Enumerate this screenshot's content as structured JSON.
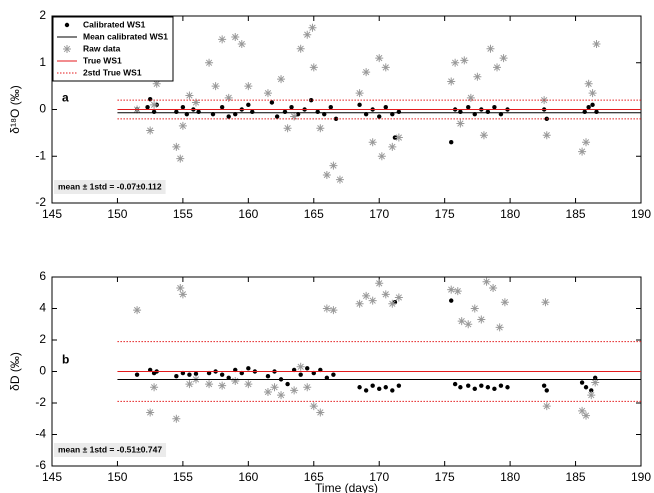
{
  "chart_data": [
    {
      "type": "scatter",
      "ylabel": "δ¹⁸O (‰)",
      "panel_label": "a",
      "annotation": "mean ± 1std = -0.07±0.112",
      "legend": "upper left",
      "xlim": [
        145,
        190
      ],
      "xticks": [
        145,
        150,
        155,
        160,
        165,
        170,
        175,
        180,
        185,
        190
      ],
      "ylim": [
        -2,
        2
      ],
      "yticks": [
        -2,
        -1,
        0,
        1,
        2
      ],
      "series": [
        {
          "name": "Calibrated WS1",
          "color": "#000000",
          "marker": "dot",
          "x": [
            151.5,
            152.3,
            152.5,
            152.8,
            153.0,
            154.5,
            155.0,
            155.3,
            155.8,
            156.2,
            157.3,
            158.0,
            158.5,
            159.0,
            159.5,
            160.0,
            160.3,
            161.8,
            162.2,
            162.8,
            163.3,
            163.8,
            164.3,
            164.8,
            165.3,
            165.8,
            166.3,
            166.7,
            168.5,
            169.0,
            169.5,
            170.0,
            170.5,
            171.0,
            171.2,
            171.5,
            175.5,
            175.8,
            176.2,
            176.8,
            177.3,
            177.8,
            178.3,
            178.8,
            179.3,
            179.8,
            182.6,
            182.8,
            185.7,
            186.0,
            186.3,
            186.6
          ],
          "values": [
            0.0,
            0.05,
            0.22,
            -0.05,
            0.1,
            -0.05,
            0.05,
            -0.1,
            0.0,
            -0.05,
            -0.1,
            0.05,
            -0.15,
            -0.1,
            0.0,
            0.1,
            -0.05,
            0.15,
            -0.15,
            -0.05,
            0.05,
            -0.1,
            0.0,
            0.2,
            -0.05,
            -0.1,
            0.05,
            -0.2,
            0.1,
            -0.1,
            0.0,
            -0.15,
            0.05,
            -0.1,
            -0.6,
            -0.05,
            -0.7,
            0.0,
            -0.05,
            0.05,
            -0.1,
            0.0,
            -0.05,
            0.05,
            -0.1,
            0.0,
            0.0,
            -0.2,
            -0.05,
            0.05,
            0.1,
            -0.05
          ]
        },
        {
          "name": "Mean calibrated WS1",
          "color": "#000000",
          "linestyle": "solid",
          "x": [
            150,
            190
          ],
          "values": [
            -0.07,
            -0.07
          ]
        },
        {
          "name": "Raw data",
          "color": "#999999",
          "marker": "star",
          "x": [
            151.5,
            152.5,
            152.8,
            153.0,
            154.5,
            154.8,
            155.0,
            155.5,
            156.0,
            157.0,
            157.5,
            158.0,
            158.5,
            159.0,
            159.5,
            160.0,
            161.5,
            162.5,
            163.0,
            163.5,
            164.0,
            164.5,
            164.9,
            165.0,
            165.5,
            166.0,
            166.5,
            167.0,
            168.5,
            169.0,
            169.5,
            170.0,
            170.2,
            170.5,
            171.0,
            171.5,
            175.5,
            175.8,
            176.2,
            176.5,
            177.0,
            177.5,
            178.0,
            178.5,
            179.0,
            179.5,
            182.6,
            182.8,
            185.5,
            185.8,
            186.0,
            186.3,
            186.6
          ],
          "values": [
            0.0,
            -0.45,
            0.1,
            0.55,
            -0.8,
            -1.05,
            -0.35,
            0.3,
            0.15,
            1.0,
            0.5,
            1.5,
            0.25,
            1.55,
            1.4,
            0.5,
            0.35,
            0.65,
            -0.4,
            -0.15,
            1.3,
            1.6,
            1.75,
            0.9,
            -0.4,
            -1.4,
            -1.2,
            -1.5,
            0.35,
            0.8,
            -0.7,
            1.1,
            -1.0,
            0.9,
            -0.8,
            -0.6,
            0.6,
            1.0,
            -0.3,
            1.05,
            0.25,
            0.7,
            -0.55,
            1.3,
            0.9,
            1.1,
            0.2,
            -0.55,
            -0.9,
            -0.7,
            0.55,
            0.35,
            1.4
          ]
        },
        {
          "name": "True WS1",
          "color": "#e41a1c",
          "linestyle": "solid",
          "x": [
            150,
            190
          ],
          "values": [
            0,
            0
          ]
        },
        {
          "name": "2std True WS1",
          "color": "#e41a1c",
          "linestyle": "dotted",
          "x": [
            150,
            190
          ],
          "values": [
            0.2,
            0.2
          ]
        },
        {
          "color": "#e41a1c",
          "linestyle": "dotted",
          "x": [
            150,
            190
          ],
          "values": [
            -0.2,
            -0.2
          ]
        }
      ]
    },
    {
      "type": "scatter",
      "ylabel": "δD (‰)",
      "xlabel": "Time (days)",
      "panel_label": "b",
      "annotation": "mean ± 1std = -0.51±0.747",
      "xlim": [
        145,
        190
      ],
      "xticks": [
        145,
        150,
        155,
        160,
        165,
        170,
        175,
        180,
        185,
        190
      ],
      "ylim": [
        -6,
        6
      ],
      "yticks": [
        -6,
        -4,
        -2,
        0,
        2,
        4,
        6
      ],
      "series": [
        {
          "color": "#000000",
          "marker": "dot",
          "x": [
            151.5,
            152.5,
            152.8,
            153.0,
            154.5,
            155.0,
            155.5,
            156.0,
            157.0,
            157.5,
            158.0,
            158.5,
            159.0,
            159.5,
            160.0,
            160.5,
            161.5,
            162.0,
            162.5,
            163.0,
            163.5,
            164.0,
            164.5,
            165.0,
            165.5,
            166.0,
            166.5,
            168.5,
            169.0,
            169.5,
            170.0,
            170.5,
            171.0,
            171.2,
            171.5,
            175.5,
            175.8,
            176.2,
            176.8,
            177.3,
            177.8,
            178.3,
            178.8,
            179.3,
            179.8,
            182.6,
            182.8,
            185.5,
            185.8,
            186.2,
            186.5
          ],
          "values": [
            -0.2,
            0.1,
            -0.1,
            0.0,
            -0.3,
            -0.1,
            -0.2,
            -0.15,
            -0.1,
            0.0,
            -0.2,
            -0.4,
            0.1,
            -0.1,
            0.2,
            0.0,
            -0.3,
            0.0,
            -0.5,
            -0.8,
            0.1,
            -0.2,
            0.2,
            -0.1,
            0.1,
            -0.4,
            -0.2,
            -1.0,
            -1.2,
            -0.9,
            -1.1,
            -1.0,
            -1.2,
            4.4,
            -0.9,
            4.5,
            -0.8,
            -1.0,
            -0.9,
            -1.1,
            -0.9,
            -1.0,
            -1.1,
            -0.9,
            -1.0,
            -0.9,
            -1.2,
            -0.7,
            -1.0,
            -1.2,
            -0.4
          ]
        },
        {
          "color": "#000000",
          "linestyle": "solid",
          "x": [
            150,
            190
          ],
          "values": [
            -0.51,
            -0.51
          ]
        },
        {
          "color": "#999999",
          "marker": "star",
          "x": [
            151.5,
            152.5,
            152.8,
            154.5,
            154.8,
            155.0,
            155.5,
            156.0,
            157.0,
            158.0,
            159.0,
            160.0,
            161.5,
            162.0,
            162.5,
            163.5,
            164.0,
            164.5,
            165.0,
            165.5,
            166.0,
            166.5,
            168.5,
            169.0,
            169.5,
            170.0,
            170.5,
            171.0,
            171.5,
            175.5,
            176.0,
            176.3,
            176.8,
            177.3,
            177.8,
            178.2,
            178.7,
            179.2,
            179.6,
            182.7,
            182.8,
            185.5,
            185.8,
            186.2,
            186.5
          ],
          "values": [
            3.9,
            -2.6,
            -1.0,
            -3.0,
            5.3,
            4.9,
            -0.8,
            -0.5,
            -0.8,
            -0.9,
            -0.6,
            -0.8,
            -1.3,
            -1.0,
            -1.5,
            -1.2,
            0.3,
            -1.0,
            -2.2,
            -2.6,
            4.0,
            3.9,
            4.3,
            4.8,
            4.5,
            5.6,
            4.9,
            4.3,
            4.7,
            5.2,
            5.1,
            3.2,
            3.0,
            4.0,
            3.3,
            5.7,
            5.3,
            2.8,
            4.4,
            4.4,
            -2.2,
            -2.5,
            -2.8,
            -1.5,
            -0.7
          ]
        },
        {
          "color": "#e41a1c",
          "linestyle": "solid",
          "x": [
            150,
            190
          ],
          "values": [
            0,
            0
          ]
        },
        {
          "color": "#e41a1c",
          "linestyle": "dotted",
          "x": [
            150,
            190
          ],
          "values": [
            1.9,
            1.9
          ]
        },
        {
          "color": "#e41a1c",
          "linestyle": "dotted",
          "x": [
            150,
            190
          ],
          "values": [
            -1.9,
            -1.9
          ]
        }
      ]
    }
  ]
}
